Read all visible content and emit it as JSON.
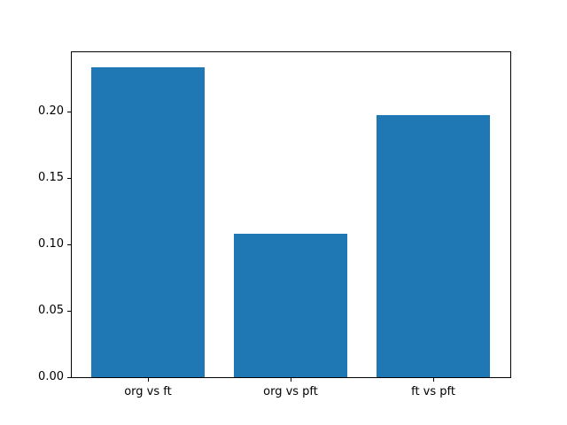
{
  "figure": {
    "background": "#ffffff"
  },
  "chart_data": {
    "type": "bar",
    "title": "",
    "xlabel": "",
    "ylabel": "",
    "categories": [
      "org vs ft",
      "org vs pft",
      "ft vs pft"
    ],
    "values": [
      0.233,
      0.108,
      0.197
    ],
    "x_positions": [
      0,
      1,
      2
    ],
    "bar_width": 0.8,
    "xlim": [
      -0.54,
      2.54
    ],
    "ylim": [
      0,
      0.245
    ],
    "yticks": [
      0,
      0.05,
      0.1,
      0.15,
      0.2
    ],
    "ytick_labels": [
      "0.00",
      "0.05",
      "0.10",
      "0.15",
      "0.20"
    ],
    "bar_color": "#1f77b4",
    "axes_color": "#000000",
    "text_color": "#000000",
    "grid": false,
    "legend": false
  }
}
